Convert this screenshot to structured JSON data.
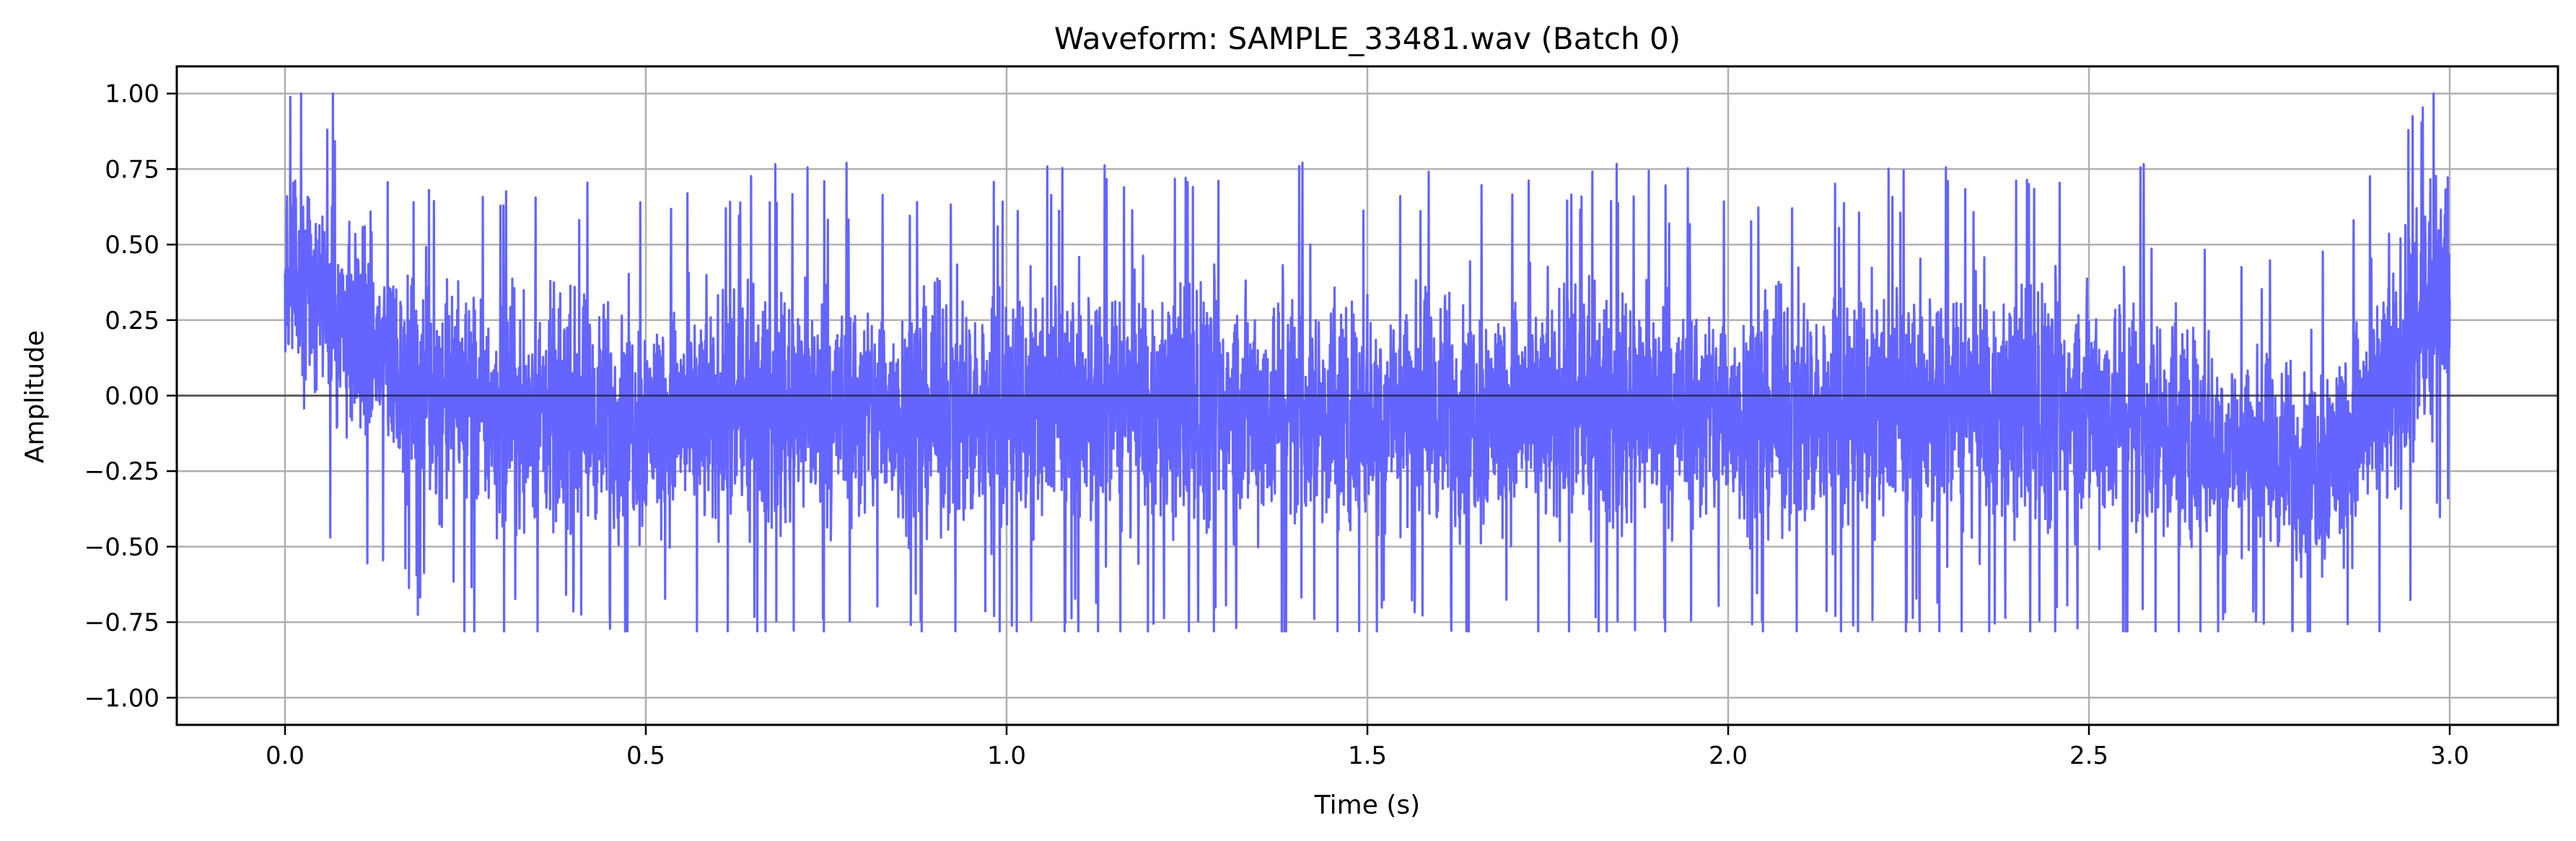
{
  "chart_data": {
    "type": "line",
    "title": "Waveform: SAMPLE_33481.wav (Batch 0)",
    "xlabel": "Time (s)",
    "ylabel": "Amplitude",
    "xlim": [
      -0.15,
      3.15
    ],
    "ylim": [
      -1.09,
      1.09
    ],
    "x_ticks": [
      0.0,
      0.5,
      1.0,
      1.5,
      2.0,
      2.5,
      3.0
    ],
    "x_tick_labels": [
      "0.0",
      "0.5",
      "1.0",
      "1.5",
      "2.0",
      "2.5",
      "3.0"
    ],
    "y_ticks": [
      1.0,
      0.75,
      0.5,
      0.25,
      0.0,
      -0.25,
      -0.5,
      -0.75,
      -1.0
    ],
    "y_tick_labels": [
      "1.00",
      "0.75",
      "0.50",
      "0.25",
      "0.00",
      "−0.25",
      "−0.50",
      "−0.75",
      "−1.00"
    ],
    "grid": true,
    "zero_line": true,
    "series": [
      {
        "color": "#6464ff",
        "duration": 3.0,
        "envelope_t": [
          0.0,
          0.02,
          0.05,
          0.1,
          0.15,
          0.2,
          0.3,
          0.5,
          0.7,
          1.0,
          1.3,
          1.5,
          1.8,
          2.0,
          2.2,
          2.5,
          2.6,
          2.7,
          2.75,
          2.8,
          2.85,
          2.9,
          2.95,
          3.0
        ],
        "envelope_upper": [
          0.78,
          0.95,
          0.82,
          0.72,
          0.6,
          0.55,
          0.5,
          0.45,
          0.5,
          0.5,
          0.55,
          0.5,
          0.5,
          0.48,
          0.5,
          0.55,
          0.5,
          0.3,
          0.25,
          0.25,
          0.35,
          0.55,
          0.75,
          0.9
        ],
        "envelope_lower": [
          -0.05,
          -0.1,
          -0.2,
          -0.3,
          -0.4,
          -0.5,
          -0.6,
          -0.6,
          -0.6,
          -0.6,
          -0.6,
          -0.6,
          -0.6,
          -0.6,
          -0.6,
          -0.6,
          -0.65,
          -0.65,
          -0.65,
          -0.7,
          -0.7,
          -0.6,
          -0.45,
          -0.1
        ],
        "peak_max": 1.0,
        "peak_min": -0.78
      }
    ]
  }
}
